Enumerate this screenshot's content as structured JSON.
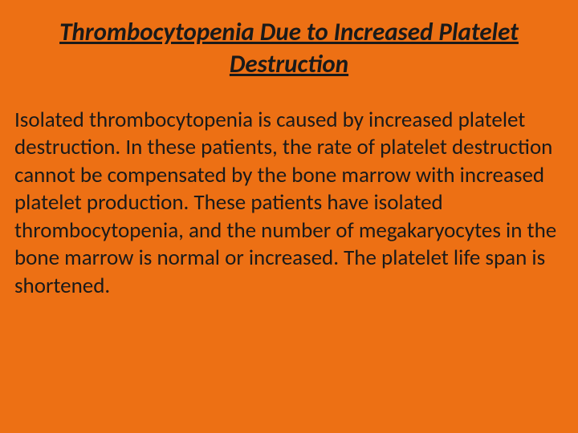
{
  "slide": {
    "title": "Thrombocytopenia Due to Increased Platelet Destruction",
    "body": "Isolated thrombocytopenia is caused by increased platelet destruction. In these patients, the rate of platelet destruction cannot be compensated by the bone marrow with increased platelet production. These patients have isolated thrombocytopenia, and the number of megakaryocytes in the bone marrow is normal or increased. The platelet life span is shortened.",
    "background_color": "#ed7014",
    "title_color": "#1a1a1a",
    "body_color": "#1a1a1a",
    "title_fontsize": 31,
    "body_fontsize": 27
  }
}
